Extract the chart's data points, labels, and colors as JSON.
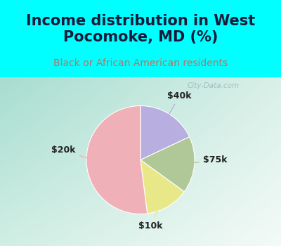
{
  "title": "Income distribution in West\nPocomoke, MD (%)",
  "subtitle": "Black or African American residents",
  "slices": [
    {
      "label": "$40k",
      "value": 18,
      "color": "#b8aee0"
    },
    {
      "label": "$75k",
      "value": 17,
      "color": "#b0c898"
    },
    {
      "label": "$10k",
      "value": 13,
      "color": "#e8e888"
    },
    {
      "label": "$20k",
      "value": 52,
      "color": "#f0b0b8"
    }
  ],
  "title_color": "#1a1a3a",
  "subtitle_color": "#c07060",
  "bg_color": "#00ffff",
  "watermark": "City-Data.com",
  "label_color": "#222222",
  "label_fontsize": 9,
  "title_fontsize": 15,
  "subtitle_fontsize": 10
}
